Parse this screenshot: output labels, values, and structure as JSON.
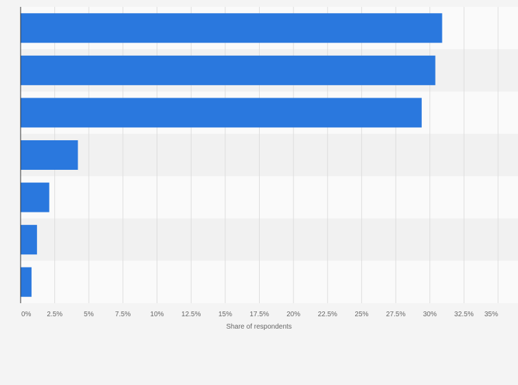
{
  "chart_data": {
    "type": "bar",
    "orientation": "horizontal",
    "title": "",
    "xlabel": "Share of respondents",
    "ylabel": "",
    "categories": [
      "",
      "",
      "",
      "",
      "",
      "",
      ""
    ],
    "values": [
      30.9,
      30.4,
      29.4,
      4.2,
      2.1,
      1.2,
      0.8
    ],
    "value_unit": "%",
    "xlim": [
      0,
      35
    ],
    "xticks": [
      0,
      2.5,
      5,
      7.5,
      10,
      12.5,
      15,
      17.5,
      20,
      22.5,
      25,
      27.5,
      30,
      32.5,
      35
    ],
    "xtick_labels": [
      "0%",
      "2.5%",
      "5%",
      "7.5%",
      "10%",
      "12.5%",
      "15%",
      "17.5%",
      "20%",
      "22.5%",
      "25%",
      "27.5%",
      "30%",
      "32.5%",
      "35%"
    ],
    "grid": true,
    "legend": "none"
  },
  "colors": {
    "bar": "#2a78de",
    "band_light": "#fafafa",
    "band_dark": "#f1f1f1",
    "gridline": "#dddddd",
    "axis": "#333333",
    "page_background": "#f4f4f4"
  }
}
